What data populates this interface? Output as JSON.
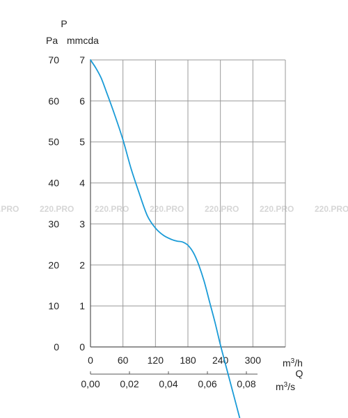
{
  "chart_data": {
    "type": "line",
    "title": "",
    "y_label_top": "P",
    "y_left_unit": "Pa",
    "y_right_unit": "mmcda",
    "x_label_q": "Q",
    "x_top_unit": "m3/h",
    "x_bottom_unit": "m3/s",
    "x_unit_base": "m",
    "x_unit_exp": "3",
    "x_top_unit_suffix": "/h",
    "x_bottom_unit_suffix": "/s",
    "x_top_ticks": [
      "0",
      "60",
      "120",
      "180",
      "240",
      "300"
    ],
    "x_bottom_ticks": [
      "0,00",
      "0,02",
      "0,04",
      "0,06",
      "0,08"
    ],
    "y_left_ticks": [
      "0",
      "10",
      "20",
      "30",
      "40",
      "50",
      "60",
      "70"
    ],
    "y_right_ticks": [
      "0",
      "1",
      "2",
      "3",
      "4",
      "5",
      "6",
      "7"
    ],
    "xlim": [
      0,
      360
    ],
    "ylim": [
      0,
      70
    ],
    "grid": true,
    "series": [
      {
        "color": "#1a9bd7",
        "x": [
          0,
          10,
          20,
          30,
          45,
          60,
          75,
          90,
          105,
          120,
          135,
          150,
          160,
          170,
          180,
          190,
          200,
          210,
          220,
          230,
          240,
          250,
          260,
          270,
          280,
          282
        ],
        "y": [
          70,
          68,
          65.5,
          62,
          56.5,
          50.5,
          43.5,
          37.5,
          32,
          29,
          27.2,
          26.2,
          25.8,
          25.6,
          24.8,
          23,
          20,
          16,
          11,
          6,
          0.5,
          -4.5,
          -9.5,
          -14.5,
          -19.5,
          -20.5
        ]
      }
    ]
  },
  "watermark": {
    "text": "220.PRO",
    "count": 7
  }
}
